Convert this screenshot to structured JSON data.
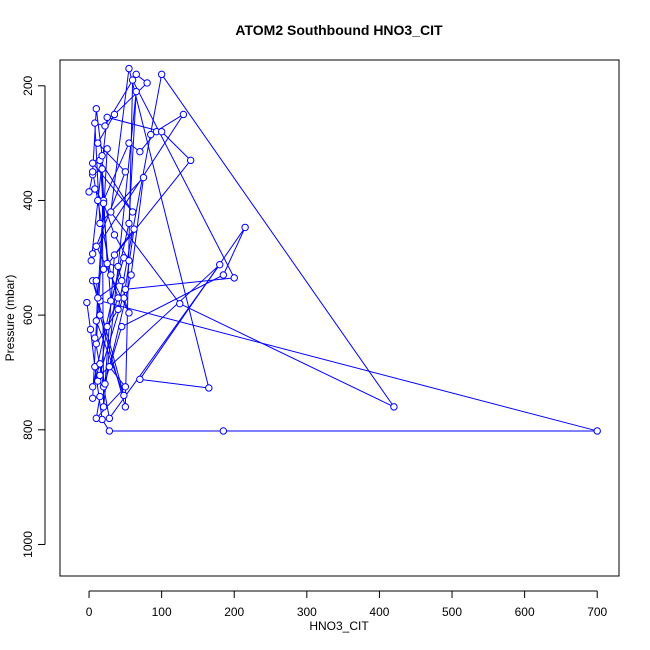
{
  "chart_data": {
    "type": "line",
    "title": "ATOM2 Southbound HNO3_CIT",
    "xlabel": "HNO3_CIT",
    "ylabel": "Pressure (mbar)",
    "xlim": [
      -40,
      730
    ],
    "ylim": [
      1055,
      155
    ],
    "y_reversed": true,
    "xticks": [
      0,
      100,
      200,
      300,
      400,
      500,
      600,
      700
    ],
    "yticks": [
      200,
      400,
      600,
      800,
      1000
    ],
    "line_color": "#0000FF",
    "marker": "open-circle",
    "grid": false,
    "legend": "none",
    "series": [
      {
        "points": [
          [
            -3,
            578
          ],
          [
            2,
            625
          ],
          [
            8,
            690
          ],
          [
            18,
            782
          ],
          [
            28,
            802
          ],
          [
            185,
            802
          ],
          [
            700,
            802
          ],
          [
            15,
            575
          ],
          [
            5,
            540
          ],
          [
            48,
            740
          ],
          [
            10,
            610
          ],
          [
            20,
            400
          ],
          [
            55,
            300
          ],
          [
            70,
            315
          ],
          [
            93,
            280
          ],
          [
            85,
            285
          ],
          [
            130,
            250
          ],
          [
            5,
            493
          ],
          [
            3,
            505
          ],
          [
            25,
            255
          ],
          [
            100,
            280
          ],
          [
            140,
            330
          ],
          [
            20,
            520
          ],
          [
            10,
            540
          ],
          [
            15,
            600
          ],
          [
            50,
            760
          ],
          [
            60,
            190
          ],
          [
            200,
            535
          ],
          [
            50,
            555
          ],
          [
            12,
            715
          ],
          [
            20,
            725
          ],
          [
            45,
            620
          ],
          [
            185,
            530
          ],
          [
            215,
            447
          ],
          [
            70,
            712
          ],
          [
            165,
            727
          ],
          [
            55,
            170
          ],
          [
            30,
            420
          ],
          [
            125,
            580
          ],
          [
            420,
            760
          ],
          [
            100,
            180
          ],
          [
            40,
            590
          ],
          [
            10,
            650
          ],
          [
            25,
            310
          ],
          [
            5,
            335
          ],
          [
            60,
            420
          ],
          [
            15,
            330
          ],
          [
            30,
            575
          ],
          [
            48,
            500
          ],
          [
            55,
            505
          ],
          [
            35,
            460
          ],
          [
            20,
            405
          ],
          [
            8,
            380
          ],
          [
            0,
            385
          ],
          [
            5,
            355
          ],
          [
            18,
            345
          ],
          [
            25,
            510
          ],
          [
            40,
            515
          ],
          [
            45,
            540
          ],
          [
            12,
            570
          ],
          [
            5,
            745
          ],
          [
            15,
            742
          ],
          [
            10,
            780
          ],
          [
            50,
            725
          ],
          [
            28,
            690
          ],
          [
            58,
            530
          ],
          [
            75,
            360
          ],
          [
            15,
            440
          ],
          [
            8,
            265
          ],
          [
            22,
            270
          ],
          [
            65,
            180
          ],
          [
            80,
            195
          ],
          [
            35,
            250
          ],
          [
            12,
            300
          ],
          [
            50,
            350
          ],
          [
            10,
            480
          ],
          [
            55,
            596
          ],
          [
            48,
            570
          ],
          [
            62,
            450
          ],
          [
            35,
            495
          ],
          [
            22,
            720
          ],
          [
            15,
            685
          ],
          [
            5,
            725
          ],
          [
            55,
            440
          ],
          [
            65,
            210
          ],
          [
            20,
            760
          ],
          [
            18,
            322
          ],
          [
            10,
            240
          ],
          [
            5,
            350
          ],
          [
            12,
            400
          ],
          [
            30,
            530
          ],
          [
            40,
            570
          ],
          [
            25,
            620
          ],
          [
            15,
            705
          ],
          [
            180,
            512
          ],
          [
            28,
            780
          ],
          [
            8,
            640
          ]
        ]
      }
    ]
  }
}
